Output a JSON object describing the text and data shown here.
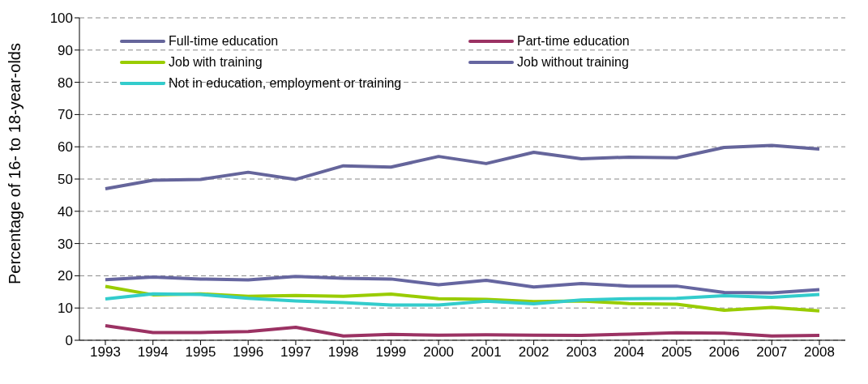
{
  "chart_data": {
    "type": "line",
    "ylabel": "Percentage of 16- to 18-year-olds",
    "categories": [
      "1993",
      "1994",
      "1995",
      "1996",
      "1997",
      "1998",
      "1999",
      "2000",
      "2001",
      "2002",
      "2003",
      "2004",
      "2005",
      "2006",
      "2007",
      "2008"
    ],
    "series": [
      {
        "name": "Full-time education",
        "color": "#65659b",
        "values": [
          47,
          49.6,
          49.9,
          52.1,
          49.9,
          54.1,
          53.7,
          57,
          54.8,
          58.3,
          56.3,
          56.8,
          56.6,
          59.8,
          60.4,
          59.3
        ]
      },
      {
        "name": "Part-time education",
        "color": "#9b3263",
        "values": [
          4.5,
          2.4,
          2.4,
          2.7,
          4.0,
          1.3,
          1.8,
          1.6,
          1.7,
          1.6,
          1.5,
          1.9,
          2.3,
          2.2,
          1.3,
          1.5
        ]
      },
      {
        "name": "Job with training",
        "color": "#99cc00",
        "values": [
          16.7,
          14.1,
          14.4,
          13.6,
          13.9,
          13.6,
          14.3,
          12.9,
          12.7,
          12.0,
          12.2,
          11.4,
          11.2,
          9.3,
          10.2,
          9.1
        ]
      },
      {
        "name": "Job without training",
        "color": "#6666a0",
        "values": [
          18.8,
          19.6,
          19.0,
          18.7,
          19.8,
          19.2,
          19.0,
          17.2,
          18.6,
          16.5,
          17.6,
          16.8,
          16.8,
          14.8,
          14.7,
          15.7
        ]
      },
      {
        "name": "Not in education, employment or training",
        "color": "#33cccc",
        "values": [
          12.8,
          14.4,
          14.2,
          13.0,
          12.2,
          11.7,
          10.9,
          10.9,
          12.1,
          11.3,
          12.5,
          12.9,
          13.0,
          13.8,
          13.3,
          14.2
        ]
      }
    ],
    "ylim": [
      0,
      100
    ],
    "yticks": [
      0,
      10,
      20,
      30,
      40,
      50,
      60,
      70,
      80,
      90,
      100
    ],
    "grid": "y",
    "legend": "top",
    "marker": "none",
    "line_style": "solid"
  }
}
